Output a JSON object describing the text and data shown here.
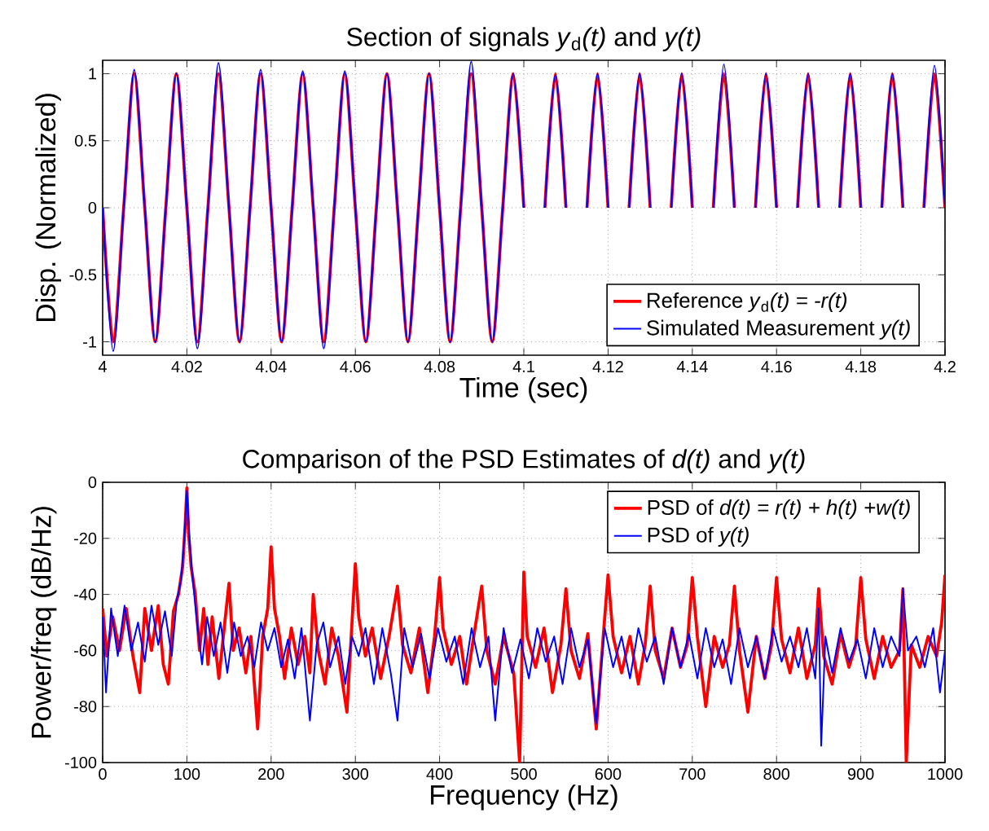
{
  "chart_data": [
    {
      "type": "line",
      "title": "Section of signals *y*$_{d}$*(t)* and *y(t)*",
      "xlabel": "Time (sec)",
      "ylabel": "Disp. (Normalized)",
      "x": [
        4.0,
        4.0025,
        4.005,
        4.0075,
        4.01,
        4.0125,
        4.015,
        4.0175,
        4.02,
        4.0225,
        4.025,
        4.0275,
        4.03,
        4.0325,
        4.035,
        4.0375,
        4.04,
        4.0425,
        4.045,
        4.0475,
        4.05,
        4.0525,
        4.055,
        4.0575,
        4.06,
        4.0625,
        4.065,
        4.0675,
        4.07,
        4.0725,
        4.075,
        4.0775,
        4.08,
        4.0825,
        4.085,
        4.0875,
        4.09,
        4.0925,
        4.095,
        4.0975,
        4.1,
        4.1025,
        4.105,
        4.1075,
        4.11,
        4.1125,
        4.115,
        4.1175,
        4.12,
        4.1225,
        4.125,
        4.1275,
        4.13,
        4.1325,
        4.135,
        4.1375,
        4.14,
        4.1425,
        4.145,
        4.1475,
        4.15,
        4.1525,
        4.155,
        4.1575,
        4.16,
        4.1625,
        4.165,
        4.1675,
        4.17,
        4.1725,
        4.175,
        4.1775,
        4.18,
        4.1825,
        4.185,
        4.1875,
        4.19,
        4.1925,
        4.195,
        4.1975,
        4.2
      ],
      "series": [
        {
          "name": "Reference *y*$_{d}$*(t) = -r(t)*",
          "color": "#ff0000",
          "values": [
            0,
            -1,
            0,
            1,
            0,
            -1,
            0,
            1,
            0,
            -1,
            0,
            1,
            0,
            -1,
            0,
            1,
            0,
            -1,
            0,
            1,
            0,
            -1,
            0,
            1,
            0,
            -1,
            0,
            1,
            0,
            -1,
            0,
            1,
            0,
            -1,
            0,
            1,
            0,
            -1,
            0,
            1,
            0,
            null,
            0,
            1,
            0,
            null,
            0,
            1,
            0,
            null,
            0,
            1,
            0,
            null,
            0,
            1,
            0,
            null,
            0,
            1,
            0,
            null,
            0,
            1,
            0,
            null,
            0,
            1,
            0,
            null,
            0,
            1,
            0,
            null,
            0,
            1,
            0,
            null,
            0,
            1,
            0
          ]
        },
        {
          "name": "Simulated Measurement *y(t)*",
          "color": "#0000ff",
          "values": [
            0,
            -1.07,
            0,
            1.03,
            0,
            -1,
            0,
            1,
            0,
            -1.05,
            0,
            1.08,
            0,
            -1,
            0,
            1.03,
            0,
            -1,
            0,
            1.02,
            0,
            -1.05,
            0,
            1.02,
            0,
            -1,
            0,
            1,
            0,
            -1,
            0,
            1,
            0,
            -1,
            0,
            1.09,
            0,
            -1,
            0,
            1,
            0,
            null,
            0,
            0.99,
            0,
            null,
            0,
            1,
            0,
            null,
            0,
            1,
            0,
            null,
            0,
            1,
            0,
            null,
            0,
            1.07,
            0,
            null,
            0,
            1,
            0,
            null,
            0,
            1,
            0,
            null,
            0,
            1,
            0,
            null,
            0,
            1,
            0,
            null,
            0,
            1.06,
            0
          ]
        }
      ],
      "xlim": [
        4,
        4.2
      ],
      "ylim": [
        -1.1,
        1.1
      ],
      "xticks": [
        4,
        4.02,
        4.04,
        4.06,
        4.08,
        4.1,
        4.12,
        4.14,
        4.16,
        4.18,
        4.2
      ],
      "yticks": [
        -1,
        -0.5,
        0,
        0.5,
        1
      ],
      "grid": true,
      "legend": "bottom right"
    },
    {
      "type": "line",
      "title": "Comparison of the PSD Estimates of *d(t)* and *y(t)*",
      "xlabel": "Frequency (Hz)",
      "ylabel": "Power/freq (dB/Hz)",
      "series": [
        {
          "name": "PSD of *d(t) = r(t) + h(t) +w(t)*",
          "color": "#ff0000",
          "x": [
            0,
            5,
            12,
            20,
            28,
            36,
            44,
            50,
            58,
            66,
            72,
            78,
            84,
            90,
            95,
            98,
            100,
            102,
            105,
            110,
            115,
            120,
            125,
            130,
            138,
            145,
            150,
            155,
            162,
            170,
            176,
            184,
            190,
            196,
            200,
            204,
            210,
            216,
            224,
            232,
            240,
            246,
            250,
            256,
            264,
            272,
            280,
            290,
            296,
            300,
            304,
            312,
            320,
            330,
            340,
            350,
            356,
            366,
            376,
            386,
            394,
            400,
            404,
            414,
            424,
            432,
            440,
            450,
            456,
            466,
            476,
            488,
            495,
            500,
            504,
            514,
            524,
            534,
            544,
            550,
            556,
            566,
            576,
            586,
            594,
            600,
            606,
            616,
            626,
            636,
            644,
            650,
            656,
            666,
            676,
            686,
            694,
            700,
            706,
            716,
            726,
            736,
            744,
            750,
            756,
            766,
            776,
            786,
            794,
            800,
            806,
            816,
            826,
            836,
            846,
            850,
            856,
            866,
            876,
            886,
            894,
            900,
            906,
            916,
            926,
            936,
            946,
            950,
            954,
            960,
            970,
            980,
            990,
            996,
            1000
          ],
          "values": [
            -45,
            -62,
            -48,
            -60,
            -45,
            -62,
            -75,
            -45,
            -60,
            -44,
            -65,
            -72,
            -46,
            -40,
            -30,
            -15,
            -2,
            -18,
            -30,
            -40,
            -60,
            -45,
            -65,
            -48,
            -70,
            -50,
            -36,
            -60,
            -52,
            -68,
            -55,
            -88,
            -55,
            -45,
            -23,
            -45,
            -55,
            -70,
            -52,
            -65,
            -55,
            -68,
            -40,
            -60,
            -72,
            -52,
            -62,
            -82,
            -50,
            -29,
            -48,
            -62,
            -52,
            -70,
            -55,
            -37,
            -58,
            -68,
            -52,
            -75,
            -55,
            -34,
            -52,
            -65,
            -55,
            -72,
            -56,
            -37,
            -60,
            -72,
            -55,
            -68,
            -100,
            -32,
            -55,
            -66,
            -52,
            -75,
            -58,
            -38,
            -60,
            -70,
            -54,
            -88,
            -56,
            -33,
            -55,
            -68,
            -55,
            -72,
            -58,
            -37,
            -60,
            -70,
            -52,
            -66,
            -58,
            -34,
            -55,
            -80,
            -55,
            -66,
            -58,
            -37,
            -60,
            -82,
            -55,
            -70,
            -58,
            -34,
            -56,
            -68,
            -52,
            -70,
            -58,
            -38,
            -62,
            -72,
            -54,
            -66,
            -58,
            -34,
            -56,
            -70,
            -55,
            -66,
            -60,
            -38,
            -100,
            -58,
            -66,
            -55,
            -62,
            -50,
            -33
          ]
        },
        {
          "name": "PSD of *y(t)*",
          "color": "#0000ff",
          "x": [
            0,
            4,
            10,
            18,
            26,
            34,
            42,
            50,
            58,
            66,
            74,
            82,
            88,
            93,
            97,
            100,
            103,
            107,
            112,
            118,
            124,
            132,
            140,
            148,
            156,
            164,
            172,
            180,
            188,
            196,
            204,
            212,
            220,
            228,
            236,
            246,
            254,
            262,
            270,
            280,
            288,
            296,
            304,
            312,
            322,
            332,
            342,
            350,
            358,
            368,
            378,
            388,
            398,
            408,
            418,
            428,
            438,
            448,
            458,
            466,
            476,
            486,
            496,
            506,
            516,
            526,
            536,
            546,
            556,
            566,
            576,
            586,
            596,
            606,
            616,
            626,
            636,
            646,
            656,
            666,
            676,
            686,
            696,
            706,
            716,
            726,
            736,
            746,
            756,
            766,
            776,
            786,
            796,
            806,
            816,
            826,
            836,
            846,
            850,
            853,
            858,
            866,
            876,
            886,
            896,
            906,
            916,
            926,
            936,
            946,
            950,
            956,
            966,
            976,
            986,
            994,
            1000
          ],
          "values": [
            -48,
            -75,
            -45,
            -62,
            -44,
            -60,
            -50,
            -64,
            -44,
            -58,
            -46,
            -62,
            -42,
            -35,
            -20,
            -3,
            -20,
            -35,
            -50,
            -65,
            -48,
            -62,
            -50,
            -68,
            -50,
            -62,
            -55,
            -66,
            -50,
            -60,
            -52,
            -66,
            -56,
            -70,
            -52,
            -85,
            -58,
            -50,
            -66,
            -55,
            -72,
            -55,
            -62,
            -52,
            -72,
            -52,
            -68,
            -85,
            -52,
            -66,
            -54,
            -70,
            -52,
            -64,
            -55,
            -72,
            -52,
            -66,
            -55,
            -85,
            -52,
            -68,
            -56,
            -70,
            -52,
            -64,
            -55,
            -72,
            -52,
            -66,
            -56,
            -86,
            -52,
            -66,
            -55,
            -70,
            -52,
            -64,
            -55,
            -72,
            -52,
            -66,
            -54,
            -70,
            -52,
            -66,
            -56,
            -72,
            -52,
            -66,
            -55,
            -70,
            -52,
            -64,
            -55,
            -66,
            -52,
            -70,
            -45,
            -94,
            -55,
            -68,
            -52,
            -64,
            -56,
            -70,
            -52,
            -66,
            -55,
            -62,
            -38,
            -60,
            -55,
            -66,
            -52,
            -75,
            -60
          ]
        }
      ],
      "xlim": [
        0,
        1000
      ],
      "ylim": [
        -100,
        0
      ],
      "xticks": [
        0,
        100,
        200,
        300,
        400,
        500,
        600,
        700,
        800,
        900,
        1000
      ],
      "yticks": [
        -100,
        -80,
        -60,
        -40,
        -20,
        0
      ],
      "grid": true,
      "legend": "top right"
    }
  ]
}
